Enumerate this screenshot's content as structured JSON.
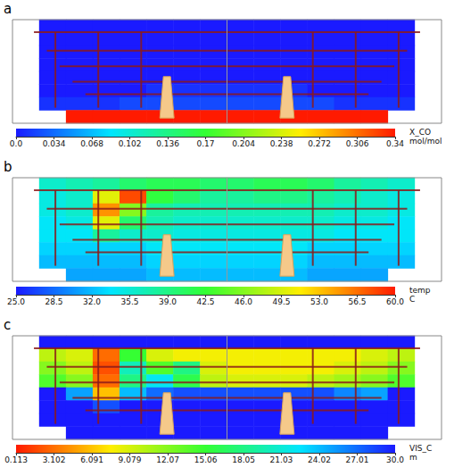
{
  "chart_data": [
    {
      "type": "heatmap",
      "panel": "a",
      "values": [
        [
          null,
          0,
          0,
          0,
          0,
          0,
          0,
          0,
          0,
          0,
          0,
          0,
          0,
          0,
          0,
          null
        ],
        [
          null,
          0,
          0,
          0,
          0,
          0,
          0,
          0,
          0,
          0,
          0,
          0,
          0,
          0,
          0,
          null
        ],
        [
          null,
          0,
          0,
          0,
          0,
          0,
          0,
          0,
          0,
          0,
          0,
          0,
          0,
          0,
          0,
          null
        ],
        [
          null,
          0,
          0,
          0,
          0,
          0,
          0,
          0,
          0,
          0,
          0,
          0,
          0,
          0,
          0,
          null
        ],
        [
          null,
          0,
          0,
          0,
          0,
          0,
          0,
          0,
          0,
          0,
          0,
          0,
          0,
          0,
          0,
          null
        ],
        [
          null,
          0,
          0,
          0,
          0,
          0.01,
          0.01,
          0.01,
          0.01,
          0.01,
          0.01,
          0,
          0,
          0,
          0,
          null
        ],
        [
          null,
          0.01,
          0.01,
          0.01,
          0.02,
          0.02,
          0.02,
          0.02,
          0.02,
          0.02,
          0.02,
          0.02,
          0.01,
          0.01,
          0.01,
          null
        ],
        [
          null,
          null,
          0.34,
          0.34,
          0.34,
          0.34,
          0.34,
          0.34,
          0.34,
          0.34,
          0.34,
          0.34,
          0.34,
          0.34,
          null,
          null
        ]
      ],
      "colorbar": {
        "title": [
          "X_CO",
          "mol/mol"
        ],
        "range": [
          0,
          0.34
        ],
        "ticks": [
          {
            "value": 0,
            "label": "0.0"
          },
          0.034,
          0.068,
          0.102,
          0.136,
          0.17,
          0.204,
          0.238,
          0.272,
          0.306,
          0.34
        ],
        "colors": [
          "#1a1aff",
          "#00e5ff",
          "#33ff33",
          "#ffee00",
          "#ff1a00"
        ]
      }
    },
    {
      "type": "heatmap",
      "panel": "b",
      "values": [
        [
          null,
          36,
          37,
          38,
          40,
          41,
          41,
          40,
          40,
          41,
          41,
          40,
          38,
          37,
          36,
          null
        ],
        [
          null,
          35,
          36,
          50,
          58,
          42,
          40,
          38,
          38,
          39,
          39,
          38,
          37,
          36,
          35,
          null
        ],
        [
          null,
          35,
          36,
          55,
          46,
          38,
          37,
          37,
          37,
          37,
          37,
          37,
          36,
          36,
          35,
          null
        ],
        [
          null,
          34,
          35,
          50,
          40,
          37,
          36,
          36,
          36,
          36,
          36,
          36,
          35,
          35,
          34,
          null
        ],
        [
          null,
          34,
          34,
          38,
          36,
          36,
          35,
          35,
          35,
          35,
          35,
          35,
          34,
          34,
          34,
          null
        ],
        [
          null,
          33,
          33,
          33,
          33,
          34,
          34,
          34,
          34,
          34,
          34,
          33,
          33,
          33,
          33,
          null
        ],
        [
          null,
          32,
          32,
          32,
          32,
          33,
          33,
          33,
          33,
          33,
          33,
          32,
          32,
          32,
          32,
          null
        ],
        [
          null,
          null,
          31,
          31,
          31,
          32,
          32,
          32,
          32,
          32,
          32,
          31,
          31,
          31,
          null,
          null
        ]
      ],
      "colorbar": {
        "title": [
          "temp",
          "C"
        ],
        "range": [
          25,
          60
        ],
        "ticks": [
          {
            "value": 25,
            "label": "25.0"
          },
          28.5,
          {
            "value": 32,
            "label": "32.0"
          },
          35.5,
          {
            "value": 39,
            "label": "39.0"
          },
          42.5,
          {
            "value": 46,
            "label": "46.0"
          },
          49.5,
          {
            "value": 53,
            "label": "53.0"
          },
          56.5,
          {
            "value": 60,
            "label": "60.0"
          }
        ],
        "colors": [
          "#1a1aff",
          "#00e5ff",
          "#33ff33",
          "#ffee00",
          "#ff1a00"
        ]
      }
    },
    {
      "type": "heatmap",
      "panel": "c",
      "values": [
        [
          null,
          30,
          30,
          30,
          30,
          30,
          30,
          30,
          30,
          30,
          30,
          30,
          30,
          30,
          30,
          null
        ],
        [
          null,
          10,
          9,
          3,
          15,
          9,
          8,
          8,
          8,
          8,
          8,
          8,
          8,
          9,
          10,
          null
        ],
        [
          null,
          12,
          10,
          2,
          20,
          14,
          18,
          9,
          8,
          8,
          8,
          8,
          9,
          10,
          12,
          null
        ],
        [
          null,
          14,
          12,
          3,
          18,
          22,
          16,
          10,
          9,
          9,
          9,
          10,
          11,
          12,
          14,
          null
        ],
        [
          null,
          30,
          25,
          6,
          24,
          27,
          28,
          28,
          28,
          28,
          28,
          28,
          26,
          25,
          30,
          null
        ],
        [
          null,
          30,
          30,
          28,
          30,
          30,
          30,
          30,
          30,
          30,
          30,
          30,
          30,
          30,
          30,
          null
        ],
        [
          null,
          30,
          30,
          30,
          30,
          30,
          30,
          30,
          30,
          30,
          30,
          30,
          30,
          30,
          30,
          null
        ],
        [
          null,
          null,
          30,
          30,
          30,
          30,
          30,
          30,
          30,
          30,
          30,
          30,
          30,
          30,
          null,
          null
        ]
      ],
      "colorbar": {
        "title": [
          "VIS_C",
          "m"
        ],
        "range": [
          0.113,
          30
        ],
        "ticks": [
          0.113,
          3.102,
          6.091,
          9.079,
          12.07,
          15.06,
          18.05,
          21.03,
          24.02,
          27.01,
          {
            "value": 30,
            "label": "30.0"
          }
        ],
        "colors": [
          "#ff1a00",
          "#ffee00",
          "#33ff33",
          "#00e5ff",
          "#1a1aff"
        ]
      }
    }
  ]
}
